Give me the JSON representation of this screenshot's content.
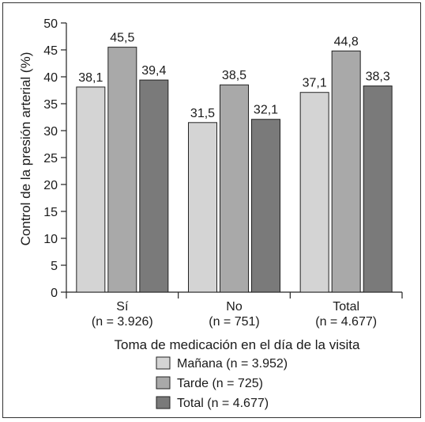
{
  "chart_data": {
    "type": "bar",
    "ylabel": "Control de la presión arterial (%)",
    "xlabel": "Toma de medicación en el día de la visita",
    "ylim": [
      0,
      50
    ],
    "yticks": [
      "0",
      "5",
      "10",
      "15",
      "20",
      "25",
      "30",
      "35",
      "40",
      "45",
      "50"
    ],
    "categories": [
      {
        "name": "Sí",
        "n": "(n = 3.926)"
      },
      {
        "name": "No",
        "n": "(n = 751)"
      },
      {
        "name": "Total",
        "n": "(n = 4.677)"
      }
    ],
    "series": [
      {
        "name": "Mañana (n = 3.952)",
        "color": "#d4d4d4",
        "values": [
          38.1,
          31.5,
          37.1
        ],
        "labels": [
          "38,1",
          "31,5",
          "37,1"
        ]
      },
      {
        "name": "Tarde (n = 725)",
        "color": "#a9a9a9",
        "values": [
          45.5,
          38.5,
          44.8
        ],
        "labels": [
          "45,5",
          "38,5",
          "44,8"
        ]
      },
      {
        "name": "Total (n = 4.677)",
        "color": "#7a7a7a",
        "values": [
          39.4,
          32.1,
          38.3
        ],
        "labels": [
          "39,4",
          "32,1",
          "38,3"
        ]
      }
    ],
    "legend_position": "bottom-center",
    "grid": false
  }
}
